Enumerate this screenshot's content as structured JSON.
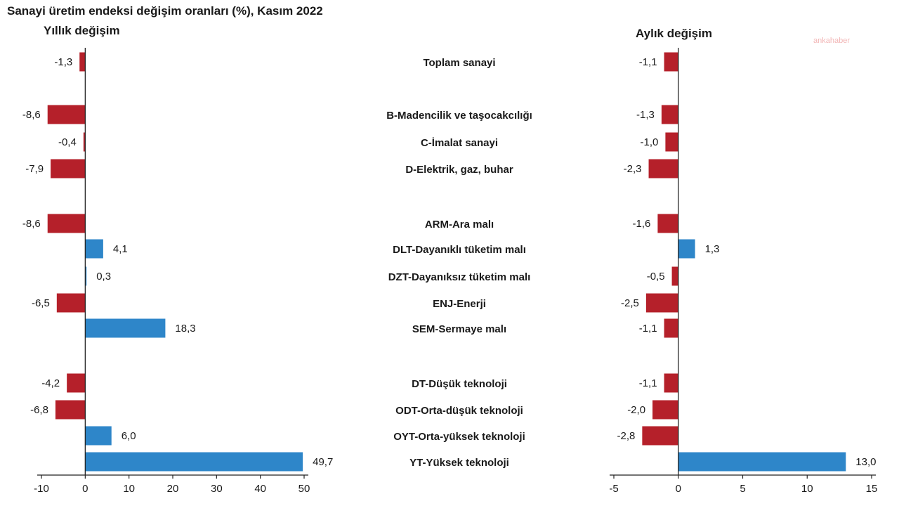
{
  "chart_data": {
    "type": "bar",
    "orientation": "horizontal",
    "title": "Sanayi üretim endeksi değişim oranları (%), Kasım 2022",
    "categories": [
      "Toplam sanayi",
      "B-Madencilik ve taşocakcılığı",
      "C-İmalat sanayi",
      "D-Elektrik, gaz, buhar",
      "ARM-Ara malı",
      "DLT-Dayanıklı tüketim malı",
      "DZT-Dayanıksız tüketim malı",
      "ENJ-Enerji",
      "SEM-Sermaye malı",
      "DT-Düşük teknoloji",
      "ODT-Orta-düşük teknoloji",
      "OYT-Orta-yüksek teknoloji",
      "YT-Yüksek teknoloji"
    ],
    "panels": [
      {
        "title": "Yıllık değişim",
        "values": [
          -1.3,
          -8.6,
          -0.4,
          -7.9,
          -8.6,
          4.1,
          0.3,
          -6.5,
          18.3,
          -4.2,
          -6.8,
          6.0,
          49.7
        ],
        "value_labels": [
          "-1,3",
          "-8,6",
          "-0,4",
          "-7,9",
          "-8,6",
          "4,1",
          "0,3",
          "-6,5",
          "18,3",
          "-4,2",
          "-6,8",
          "6,0",
          "49,7"
        ],
        "xlim": [
          -10,
          50
        ],
        "ticks": [
          -10,
          0,
          10,
          20,
          30,
          40,
          50
        ],
        "tick_labels": [
          "-10",
          "0",
          "10",
          "20",
          "30",
          "40",
          "50"
        ]
      },
      {
        "title": "Aylık değişim",
        "values": [
          -1.1,
          -1.3,
          -1.0,
          -2.3,
          -1.6,
          1.3,
          -0.5,
          -2.5,
          -1.1,
          -1.1,
          -2.0,
          -2.8,
          13.0
        ],
        "value_labels": [
          "-1,1",
          "-1,3",
          "-1,0",
          "-2,3",
          "-1,6",
          "1,3",
          "-0,5",
          "-2,5",
          "-1,1",
          "-1,1",
          "-2,0",
          "-2,8",
          "13,0"
        ],
        "xlim": [
          -5,
          15
        ],
        "ticks": [
          -5,
          0,
          5,
          10,
          15
        ],
        "tick_labels": [
          "-5",
          "0",
          "5",
          "10",
          "15"
        ]
      }
    ],
    "colors": {
      "positive": "#2e86c9",
      "negative": "#b5202a"
    },
    "grid": false
  },
  "watermark": "ankahaber"
}
